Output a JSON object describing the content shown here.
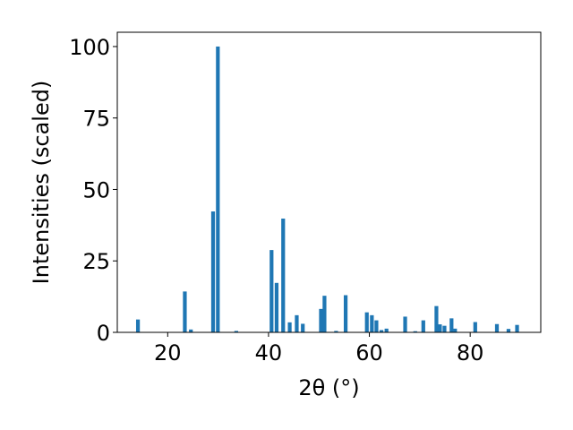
{
  "chart_data": {
    "type": "bar",
    "xlabel": "2θ (°)",
    "ylabel": "Intensities (scaled)",
    "xlim": [
      10,
      94
    ],
    "ylim": [
      0,
      105
    ],
    "xticks": [
      20,
      40,
      60,
      80
    ],
    "yticks": [
      0,
      25,
      50,
      75,
      100
    ],
    "grid": false,
    "bar_color": "#1f77b4",
    "bar_width": 0.75,
    "x": [
      14.1,
      23.4,
      24.6,
      29.0,
      29.95,
      33.6,
      40.6,
      41.6,
      42.9,
      44.2,
      45.6,
      46.8,
      50.4,
      51.1,
      53.4,
      55.3,
      59.5,
      60.5,
      61.4,
      62.4,
      63.4,
      67.1,
      69.1,
      70.7,
      73.3,
      74.0,
      74.9,
      76.3,
      77.0,
      81.0,
      85.3,
      87.6,
      89.3
    ],
    "values": [
      4.5,
      14.3,
      1.0,
      42.3,
      100.0,
      0.5,
      28.8,
      17.3,
      39.8,
      3.5,
      6.0,
      3.0,
      8.2,
      12.8,
      0.5,
      13.0,
      7.0,
      6.0,
      4.2,
      0.8,
      1.3,
      5.5,
      0.4,
      4.2,
      9.2,
      2.8,
      2.3,
      4.9,
      1.3,
      3.6,
      2.9,
      1.2,
      2.6
    ]
  }
}
